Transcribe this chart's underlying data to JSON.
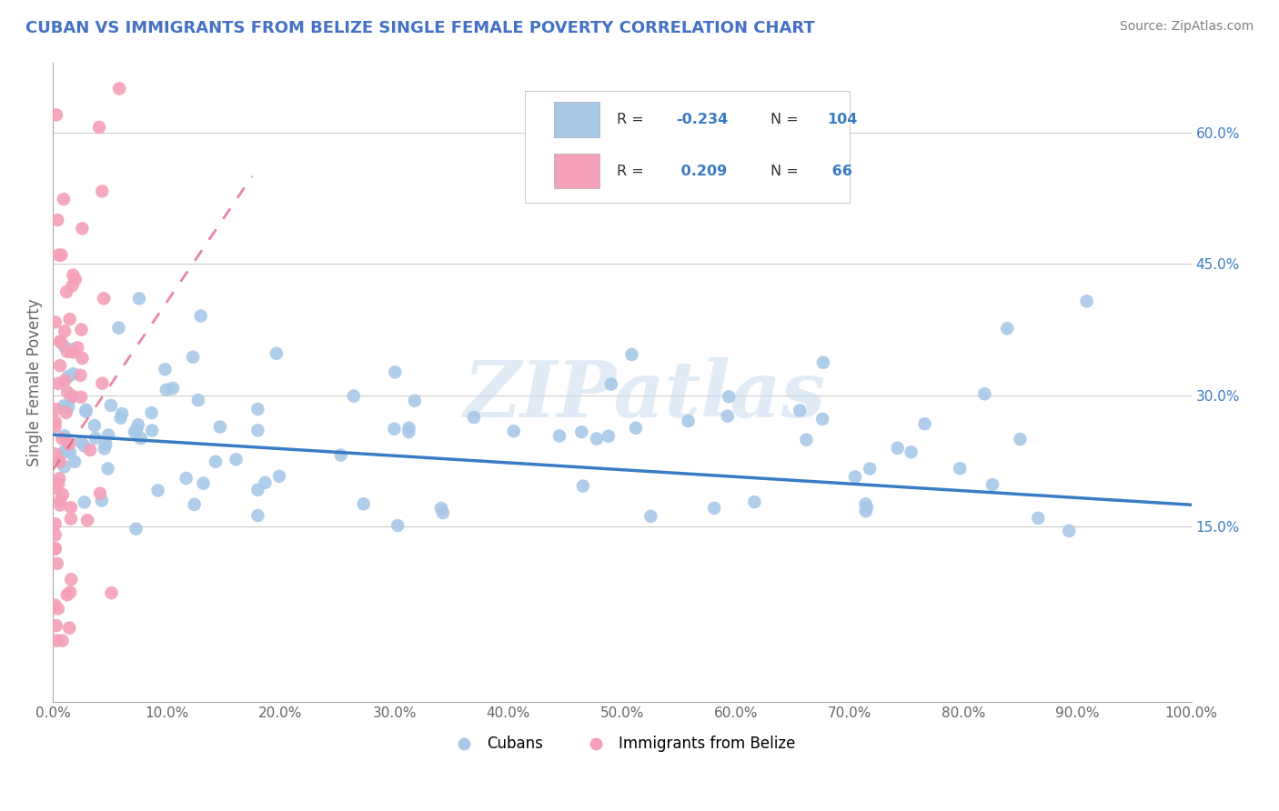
{
  "title": "CUBAN VS IMMIGRANTS FROM BELIZE SINGLE FEMALE POVERTY CORRELATION CHART",
  "source": "Source: ZipAtlas.com",
  "ylabel": "Single Female Poverty",
  "legend_label1": "Cubans",
  "legend_label2": "Immigrants from Belize",
  "r1": -0.234,
  "n1": 104,
  "r2": 0.209,
  "n2": 66,
  "xlim": [
    0,
    1.0
  ],
  "ylim": [
    -0.05,
    0.68
  ],
  "xticks": [
    0.0,
    0.1,
    0.2,
    0.3,
    0.4,
    0.5,
    0.6,
    0.7,
    0.8,
    0.9,
    1.0
  ],
  "yticks_right": [
    0.15,
    0.3,
    0.45,
    0.6
  ],
  "color_blue": "#A8C8E8",
  "color_pink": "#F4A0B8",
  "color_blue_line": "#3A7CC3",
  "color_pink_line": "#E06080",
  "background_color": "#FFFFFF",
  "watermark": "ZIPatlas",
  "title_color": "#4472C4",
  "source_color": "#808080",
  "blue_trend_x": [
    0.0,
    1.0
  ],
  "blue_trend_y": [
    0.255,
    0.175
  ],
  "pink_trend_x": [
    0.0,
    0.175
  ],
  "pink_trend_y": [
    0.215,
    0.55
  ]
}
